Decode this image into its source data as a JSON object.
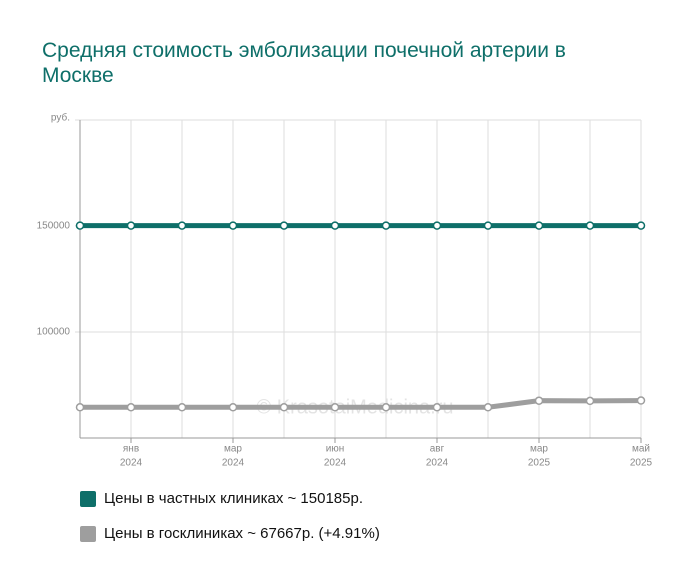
{
  "chart_data": {
    "type": "line",
    "title": "Средняя стоимость эмболизации почечной артерии в Москве",
    "watermark": "© KrasotaiMedicina.ru",
    "categories": [
      null,
      "янв",
      null,
      "мар",
      null,
      "июн",
      null,
      "авг",
      null,
      "мар",
      null,
      "май"
    ],
    "category_years": [
      null,
      "2024",
      null,
      "2024",
      null,
      "2024",
      null,
      "2024",
      null,
      "2025",
      null,
      "2025"
    ],
    "series": [
      {
        "name": "Цены в частных клиниках ~ 150185р.",
        "color": "#0e6f69",
        "values": [
          150185,
          150185,
          150185,
          150185,
          150185,
          150185,
          150185,
          150185,
          150185,
          150185,
          150185,
          150185
        ]
      },
      {
        "name": "Цены в госклиниках ~ 67667р. (+4.91%)",
        "color": "#9e9e9e",
        "values": [
          64500,
          64500,
          64500,
          64500,
          64500,
          64500,
          64500,
          64500,
          64500,
          67600,
          67500,
          67667
        ]
      }
    ],
    "ylim": [
      50000,
      200000
    ],
    "yticks": [
      100000,
      150000,
      {
        "value": 200000,
        "label": "руб."
      }
    ],
    "grid": true
  }
}
